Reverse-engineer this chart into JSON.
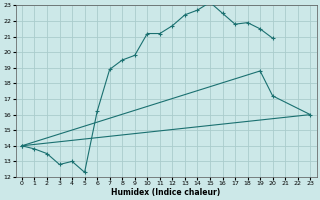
{
  "xlabel": "Humidex (Indice chaleur)",
  "xlim": [
    -0.5,
    23.5
  ],
  "ylim": [
    12,
    23
  ],
  "xticks": [
    0,
    1,
    2,
    3,
    4,
    5,
    6,
    7,
    8,
    9,
    10,
    11,
    12,
    13,
    14,
    15,
    16,
    17,
    18,
    19,
    20,
    21,
    22,
    23
  ],
  "yticks": [
    12,
    13,
    14,
    15,
    16,
    17,
    18,
    19,
    20,
    21,
    22,
    23
  ],
  "bg_color": "#cce8e8",
  "grid_color": "#aacccc",
  "line_color": "#1a7070",
  "line1_x": [
    0,
    1,
    2,
    3,
    4,
    5,
    6,
    7,
    8,
    9,
    10,
    11,
    12,
    13,
    14,
    15,
    16,
    17,
    18,
    19,
    20
  ],
  "line1_y": [
    14.0,
    13.8,
    13.5,
    12.8,
    13.0,
    12.3,
    16.2,
    18.9,
    19.5,
    19.8,
    21.2,
    21.2,
    21.7,
    22.4,
    22.7,
    23.2,
    22.5,
    21.8,
    21.9,
    21.5,
    20.9
  ],
  "line2_x": [
    0,
    19,
    20,
    23
  ],
  "line2_y": [
    14.0,
    18.8,
    17.2,
    16.0
  ],
  "line3_x": [
    0,
    23
  ],
  "line3_y": [
    14.0,
    16.0
  ]
}
